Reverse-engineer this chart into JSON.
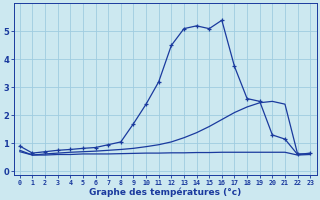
{
  "x": [
    0,
    1,
    2,
    3,
    4,
    5,
    6,
    7,
    8,
    9,
    10,
    11,
    12,
    13,
    14,
    15,
    16,
    17,
    18,
    19,
    20,
    21,
    22,
    23
  ],
  "line1": [
    0.9,
    0.65,
    0.7,
    0.75,
    0.78,
    0.82,
    0.85,
    0.95,
    1.05,
    1.7,
    2.4,
    3.2,
    4.5,
    5.1,
    5.2,
    5.1,
    5.4,
    3.75,
    2.6,
    2.5,
    1.3,
    1.15,
    0.6,
    0.65
  ],
  "line2": [
    0.7,
    0.58,
    0.62,
    0.65,
    0.68,
    0.7,
    0.72,
    0.75,
    0.78,
    0.82,
    0.88,
    0.95,
    1.05,
    1.2,
    1.38,
    1.6,
    1.85,
    2.1,
    2.3,
    2.45,
    2.5,
    2.4,
    0.62,
    0.62
  ],
  "line3": [
    0.75,
    0.58,
    0.58,
    0.6,
    0.6,
    0.62,
    0.62,
    0.62,
    0.63,
    0.64,
    0.65,
    0.65,
    0.66,
    0.66,
    0.67,
    0.67,
    0.68,
    0.68,
    0.68,
    0.68,
    0.68,
    0.68,
    0.58,
    0.6
  ],
  "line_color": "#1a3a9e",
  "bg_color": "#cce8f0",
  "grid_color": "#9fcce0",
  "xlabel": "Graphe des températures (°c)",
  "ylim": [
    -0.15,
    6.0
  ],
  "xlim": [
    -0.5,
    23.5
  ]
}
